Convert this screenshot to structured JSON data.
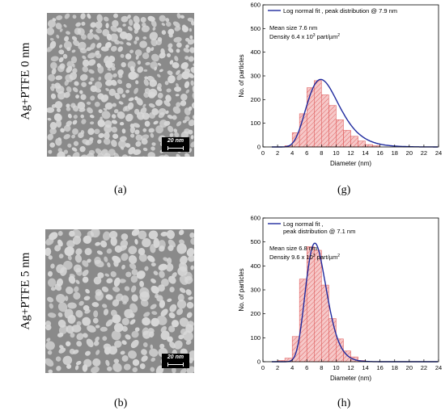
{
  "panels": {
    "sem_top": {
      "row_label": "Ag+PTFE 0 nm",
      "scale_label": "20 nm",
      "caption": "(a)"
    },
    "sem_bottom": {
      "row_label": "Ag+PTFE 5 nm",
      "scale_label": "20 nm",
      "caption": "(b)"
    },
    "chart_top_caption": "(g)",
    "chart_bottom_caption": "(h)"
  },
  "colors": {
    "bar_fill": "#f6c8c8",
    "bar_hatch": "#e06060",
    "fit_line": "#1f2a9e",
    "sem_background": "#8a8a8a",
    "sem_particles": "#d8d8d8"
  },
  "chart_data": [
    {
      "type": "bar",
      "xlabel": "Diameter (nm)",
      "ylabel": "No. of particles",
      "xlim": [
        0,
        24
      ],
      "ylim": [
        0,
        600
      ],
      "xticks": [
        0,
        2,
        4,
        6,
        8,
        10,
        12,
        14,
        16,
        18,
        20,
        22,
        24
      ],
      "yticks": [
        0,
        100,
        200,
        300,
        400,
        500,
        600
      ],
      "bin_width": 1,
      "bin_centers": [
        3.5,
        4.5,
        5.5,
        6.5,
        7.5,
        8.5,
        9.5,
        10.5,
        11.5,
        12.5,
        13.5,
        14.5,
        15.5
      ],
      "values": [
        5,
        60,
        140,
        250,
        280,
        220,
        175,
        115,
        70,
        45,
        25,
        10,
        5
      ],
      "fit": {
        "legend": "Log normal fit , peak distribution  @ 7.9 nm",
        "peak": 7.9,
        "height": 285,
        "sigma_log": 0.28
      },
      "annotations": [
        "Mean size  7.6 nm",
        "Density 6.4 x 10",
        "3",
        " part/µm",
        "2"
      ]
    },
    {
      "type": "bar",
      "xlabel": "Diameter (nm)",
      "ylabel": "No. of particles",
      "xlim": [
        0,
        24
      ],
      "ylim": [
        0,
        600
      ],
      "xticks": [
        0,
        2,
        4,
        6,
        8,
        10,
        12,
        14,
        16,
        18,
        20,
        22,
        24
      ],
      "yticks": [
        0,
        100,
        200,
        300,
        400,
        500,
        600
      ],
      "bin_width": 1,
      "bin_centers": [
        2.5,
        3.5,
        4.5,
        5.5,
        6.5,
        7.5,
        8.5,
        9.5,
        10.5,
        11.5,
        12.5,
        13.5
      ],
      "values": [
        5,
        15,
        105,
        345,
        480,
        465,
        320,
        180,
        95,
        45,
        20,
        5
      ],
      "fit": {
        "legend_line1": "Log normal fit ,",
        "legend_line2": "peak distribution  @ 7.1 nm",
        "peak": 7.1,
        "height": 495,
        "sigma_log": 0.2
      },
      "annotations": [
        "Mean size 6.8 nm",
        "Density 9.6 x 10",
        "3",
        " part/µm",
        "2"
      ]
    }
  ]
}
